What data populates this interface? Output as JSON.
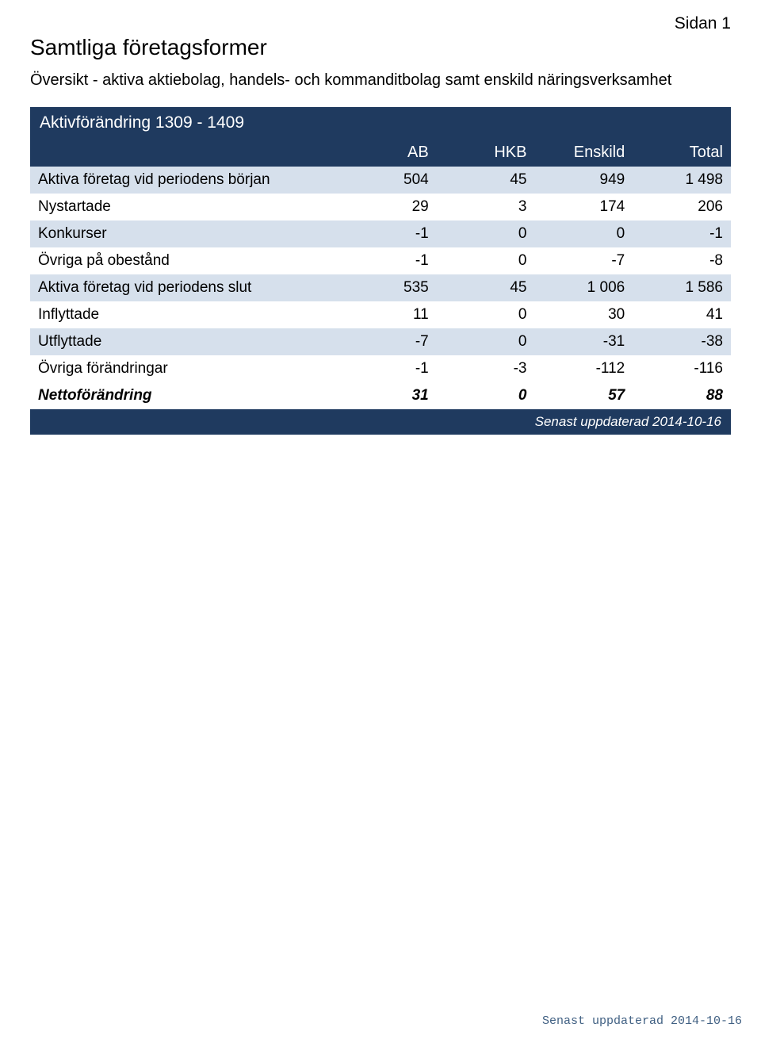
{
  "page_label": "Sidan 1",
  "title": "Samtliga företagsformer",
  "subtitle": "Översikt - aktiva aktiebolag, handels- och kommanditbolag samt enskild näringsverksamhet",
  "table": {
    "section_title": "Aktivförändring 1309 - 1409",
    "columns": [
      "AB",
      "HKB",
      "Enskild",
      "Total"
    ],
    "rows": [
      {
        "label": "Aktiva företag vid periodens början",
        "values": [
          "504",
          "45",
          "949",
          "1 498"
        ],
        "alt": true
      },
      {
        "label": "Nystartade",
        "values": [
          "29",
          "3",
          "174",
          "206"
        ],
        "alt": false
      },
      {
        "label": "Konkurser",
        "values": [
          "-1",
          "0",
          "0",
          "-1"
        ],
        "alt": true
      },
      {
        "label": "Övriga på obestånd",
        "values": [
          "-1",
          "0",
          "-7",
          "-8"
        ],
        "alt": false
      },
      {
        "label": "Aktiva företag vid periodens slut",
        "values": [
          "535",
          "45",
          "1 006",
          "1 586"
        ],
        "alt": true
      },
      {
        "label": "Inflyttade",
        "values": [
          "11",
          "0",
          "30",
          "41"
        ],
        "alt": false
      },
      {
        "label": "Utflyttade",
        "values": [
          "-7",
          "0",
          "-31",
          "-38"
        ],
        "alt": true
      },
      {
        "label": "Övriga förändringar",
        "values": [
          "-1",
          "-3",
          "-112",
          "-116"
        ],
        "alt": false
      }
    ],
    "net_row": {
      "label": "Nettoförändring",
      "values": [
        "31",
        "0",
        "57",
        "88"
      ]
    },
    "footer_text": "Senast uppdaterad 2014-10-16"
  },
  "bottom_footer": "Senast uppdaterad 2014-10-16",
  "colors": {
    "header_bg": "#1f3a5f",
    "header_fg": "#ffffff",
    "row_alt_bg": "#d6e0ec",
    "row_bg": "#ffffff",
    "footer_color": "#3f5f82"
  }
}
